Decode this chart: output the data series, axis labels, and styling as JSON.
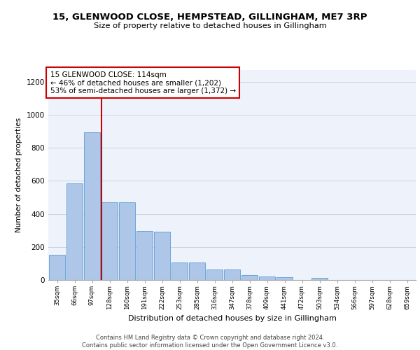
{
  "title1": "15, GLENWOOD CLOSE, HEMPSTEAD, GILLINGHAM, ME7 3RP",
  "title2": "Size of property relative to detached houses in Gillingham",
  "xlabel": "Distribution of detached houses by size in Gillingham",
  "ylabel": "Number of detached properties",
  "bar_labels": [
    "35sqm",
    "66sqm",
    "97sqm",
    "128sqm",
    "160sqm",
    "191sqm",
    "222sqm",
    "253sqm",
    "285sqm",
    "316sqm",
    "347sqm",
    "378sqm",
    "409sqm",
    "441sqm",
    "472sqm",
    "503sqm",
    "534sqm",
    "566sqm",
    "597sqm",
    "628sqm",
    "659sqm"
  ],
  "bar_values": [
    152,
    583,
    893,
    470,
    468,
    295,
    291,
    105,
    104,
    65,
    62,
    28,
    22,
    16,
    0,
    12,
    0,
    0,
    0,
    0,
    0
  ],
  "bar_color": "#aec6e8",
  "bar_edge_color": "#5b9bd5",
  "background_color": "#eef3fb",
  "vline_x": 2.52,
  "vline_color": "#cc0000",
  "annotation_text": "15 GLENWOOD CLOSE: 114sqm\n← 46% of detached houses are smaller (1,202)\n53% of semi-detached houses are larger (1,372) →",
  "annotation_box_color": "#ffffff",
  "annotation_box_edge": "#cc0000",
  "footnote": "Contains HM Land Registry data © Crown copyright and database right 2024.\nContains public sector information licensed under the Open Government Licence v3.0.",
  "ylim": [
    0,
    1270
  ],
  "yticks": [
    0,
    200,
    400,
    600,
    800,
    1000,
    1200
  ]
}
